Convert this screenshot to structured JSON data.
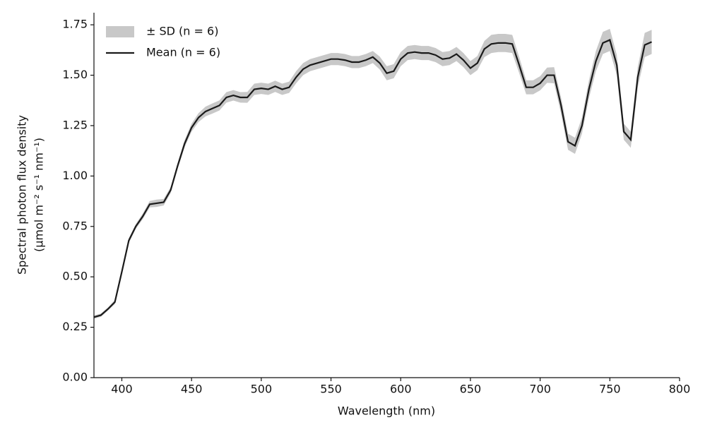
{
  "chart_data": {
    "type": "line",
    "xlabel": "Wavelength (nm)",
    "ylabel": [
      "Spectral photon flux density",
      "(μmol m⁻² s⁻¹ nm⁻¹)"
    ],
    "x": [
      380,
      385,
      390,
      395,
      400,
      405,
      410,
      415,
      420,
      425,
      430,
      435,
      440,
      445,
      450,
      455,
      460,
      465,
      470,
      475,
      480,
      485,
      490,
      495,
      500,
      505,
      510,
      515,
      520,
      525,
      530,
      535,
      540,
      545,
      550,
      555,
      560,
      565,
      570,
      575,
      580,
      585,
      590,
      595,
      600,
      605,
      610,
      615,
      620,
      625,
      630,
      635,
      640,
      645,
      650,
      655,
      660,
      665,
      670,
      675,
      680,
      685,
      690,
      695,
      700,
      705,
      710,
      715,
      720,
      725,
      730,
      735,
      740,
      745,
      750,
      755,
      760,
      765,
      770,
      775,
      780
    ],
    "series": [
      {
        "name": "± SD (n = 6)",
        "color": "#c8c8c8",
        "band_of": 1,
        "values": [
          0.008,
          0.008,
          0.008,
          0.01,
          0.012,
          0.012,
          0.012,
          0.014,
          0.016,
          0.018,
          0.016,
          0.015,
          0.015,
          0.018,
          0.02,
          0.022,
          0.024,
          0.025,
          0.025,
          0.026,
          0.026,
          0.026,
          0.027,
          0.028,
          0.028,
          0.028,
          0.028,
          0.028,
          0.028,
          0.03,
          0.03,
          0.03,
          0.03,
          0.03,
          0.03,
          0.03,
          0.03,
          0.03,
          0.03,
          0.03,
          0.03,
          0.032,
          0.035,
          0.035,
          0.035,
          0.035,
          0.035,
          0.035,
          0.035,
          0.035,
          0.035,
          0.035,
          0.035,
          0.035,
          0.035,
          0.035,
          0.04,
          0.045,
          0.045,
          0.045,
          0.045,
          0.04,
          0.035,
          0.035,
          0.035,
          0.038,
          0.04,
          0.04,
          0.04,
          0.04,
          0.04,
          0.045,
          0.05,
          0.055,
          0.055,
          0.05,
          0.04,
          0.04,
          0.05,
          0.06,
          0.06
        ]
      },
      {
        "name": "Mean (n = 6)",
        "color": "#1a1a1a",
        "values": [
          0.3,
          0.31,
          0.34,
          0.375,
          0.525,
          0.68,
          0.75,
          0.8,
          0.86,
          0.865,
          0.87,
          0.93,
          1.05,
          1.16,
          1.24,
          1.29,
          1.32,
          1.335,
          1.35,
          1.39,
          1.4,
          1.39,
          1.39,
          1.43,
          1.435,
          1.43,
          1.445,
          1.43,
          1.44,
          1.49,
          1.53,
          1.55,
          1.56,
          1.57,
          1.58,
          1.58,
          1.575,
          1.565,
          1.565,
          1.575,
          1.59,
          1.56,
          1.51,
          1.52,
          1.58,
          1.61,
          1.615,
          1.61,
          1.61,
          1.6,
          1.58,
          1.585,
          1.605,
          1.575,
          1.535,
          1.56,
          1.63,
          1.655,
          1.66,
          1.66,
          1.655,
          1.55,
          1.44,
          1.44,
          1.46,
          1.5,
          1.5,
          1.35,
          1.17,
          1.15,
          1.25,
          1.43,
          1.57,
          1.66,
          1.675,
          1.55,
          1.22,
          1.18,
          1.49,
          1.65,
          1.665
        ]
      }
    ],
    "xlim": [
      380,
      800
    ],
    "xticks": [
      400,
      450,
      500,
      550,
      600,
      650,
      700,
      750,
      800
    ],
    "ylim": [
      0,
      1.81
    ],
    "yticks": [
      {
        "value": 0,
        "label": "0.00"
      },
      {
        "value": 0.25,
        "label": "0.25"
      },
      {
        "value": 0.5,
        "label": "0.50"
      },
      {
        "value": 0.75,
        "label": "0.75"
      },
      {
        "value": 1,
        "label": "1.00"
      },
      {
        "value": 1.25,
        "label": "1.25"
      },
      {
        "value": 1.5,
        "label": "1.50"
      },
      {
        "value": 1.75,
        "label": "1.75"
      }
    ],
    "legend": "upper left",
    "grid": false
  }
}
